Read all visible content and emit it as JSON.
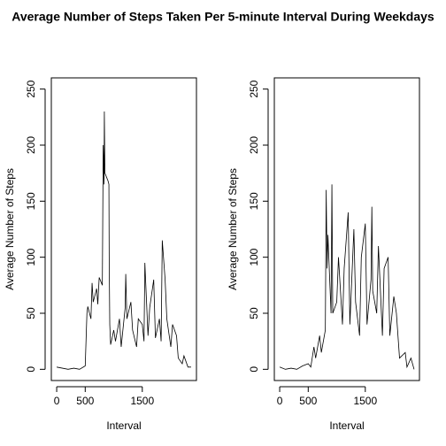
{
  "title": "Average Number of Steps Taken Per 5-minute Interval During Weekdays",
  "chart_data": [
    {
      "type": "line",
      "x_label": "Interval",
      "y_label": "Average Number of Steps",
      "xlim": [
        -94,
        2449
      ],
      "ylim": [
        -10,
        260
      ],
      "xticks": [
        0,
        500,
        1500
      ],
      "yticks": [
        0,
        50,
        100,
        150,
        200,
        250
      ],
      "color": "#000000",
      "x": [
        0,
        100,
        200,
        300,
        400,
        500,
        530,
        545,
        600,
        620,
        640,
        700,
        720,
        745,
        800,
        815,
        820,
        830,
        835,
        845,
        900,
        915,
        920,
        930,
        945,
        1000,
        1030,
        1100,
        1130,
        1200,
        1210,
        1230,
        1300,
        1330,
        1400,
        1430,
        1500,
        1530,
        1545,
        1600,
        1630,
        1700,
        1730,
        1800,
        1830,
        1850,
        1900,
        1930,
        2000,
        2030,
        2100,
        2130,
        2200,
        2230,
        2300,
        2355
      ],
      "values": [
        2,
        1,
        0,
        1,
        0,
        3,
        50,
        56,
        45,
        77,
        60,
        72,
        58,
        82,
        75,
        200,
        190,
        165,
        230,
        175,
        168,
        165,
        100,
        40,
        22,
        35,
        25,
        45,
        20,
        55,
        85,
        45,
        60,
        35,
        20,
        45,
        40,
        25,
        95,
        30,
        55,
        80,
        28,
        45,
        25,
        115,
        80,
        45,
        20,
        40,
        30,
        10,
        5,
        12,
        2,
        2
      ]
    },
    {
      "type": "line",
      "x_label": "Interval",
      "y_label": "Average Number of Steps",
      "xlim": [
        -94,
        2449
      ],
      "ylim": [
        -10,
        260
      ],
      "xticks": [
        0,
        500,
        1500
      ],
      "yticks": [
        0,
        50,
        100,
        150,
        200,
        250
      ],
      "color": "#000000",
      "x": [
        0,
        100,
        200,
        300,
        400,
        500,
        545,
        600,
        630,
        700,
        730,
        800,
        815,
        830,
        845,
        900,
        915,
        930,
        1000,
        1030,
        1100,
        1130,
        1200,
        1230,
        1300,
        1330,
        1400,
        1430,
        1500,
        1530,
        1600,
        1615,
        1630,
        1700,
        1730,
        1800,
        1830,
        1900,
        1930,
        2000,
        2045,
        2100,
        2200,
        2230,
        2300,
        2355
      ],
      "values": [
        2,
        0,
        1,
        0,
        3,
        5,
        2,
        20,
        10,
        30,
        15,
        35,
        160,
        90,
        120,
        50,
        165,
        50,
        60,
        100,
        40,
        90,
        140,
        40,
        125,
        60,
        30,
        100,
        130,
        40,
        80,
        145,
        70,
        50,
        110,
        30,
        90,
        100,
        30,
        65,
        50,
        10,
        15,
        2,
        10,
        0
      ]
    }
  ]
}
